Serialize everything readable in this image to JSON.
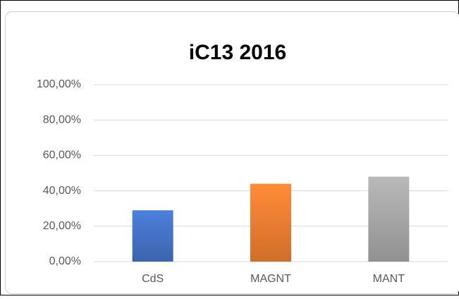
{
  "chart_data": {
    "type": "bar",
    "title": "iC13 2016",
    "categories": [
      "CdS",
      "MAGNT",
      "MANT"
    ],
    "values": [
      29,
      44,
      48
    ],
    "colors": [
      "#4472c4",
      "#ed7d31",
      "#a5a5a5"
    ],
    "ylim": [
      0,
      100
    ],
    "yticks": [
      {
        "value": 0,
        "label": "0,00%"
      },
      {
        "value": 20,
        "label": "20,00%"
      },
      {
        "value": 40,
        "label": "40,00%"
      },
      {
        "value": 60,
        "label": "60,00%"
      },
      {
        "value": 80,
        "label": "80,00%"
      },
      {
        "value": 100,
        "label": "100,00%"
      }
    ],
    "grid": true
  }
}
